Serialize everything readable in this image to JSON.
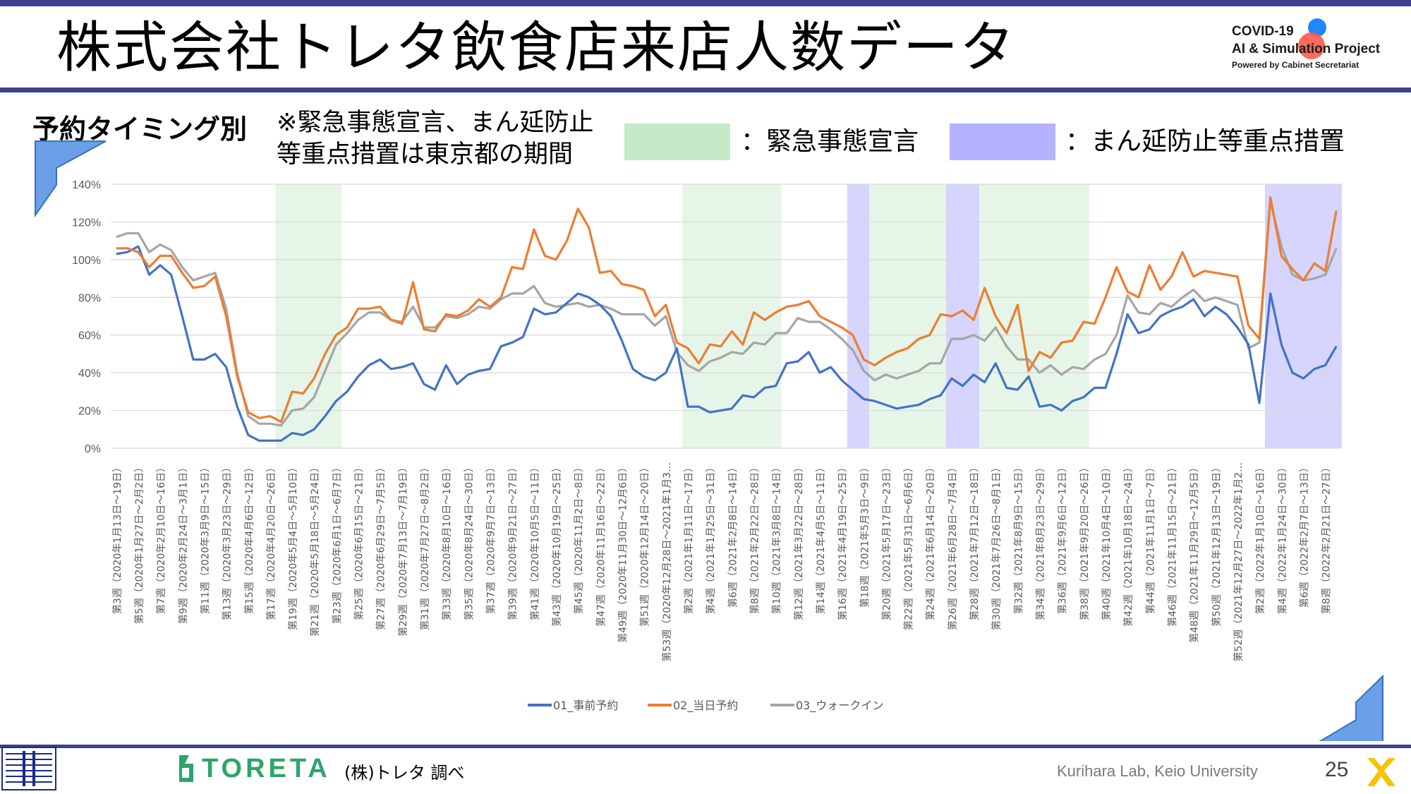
{
  "slide": {
    "title": "株式会社トレタ飲食店来店人数データ",
    "subtitle": "予約タイミング別",
    "note_line1": "※緊急事態宣言、まん延防止",
    "note_line2": "等重点措置は東京都の期間",
    "legend_emergency": "：緊急事態宣言",
    "legend_manen": "：まん延防止等重点措置",
    "covid_logo_line1": "COVID-19",
    "covid_logo_line2": "AI & Simulation Project",
    "covid_logo_line3": "Powered by Cabinet Secretariat",
    "toreta_logo": "TORETA",
    "source": "(株)トレタ 調べ",
    "lab": "Kurihara Lab, Keio University",
    "page_number": "25",
    "colors": {
      "accent_bar": "#3f3f8f",
      "emergency": "#c6e9c9",
      "manen": "#b3b3ff",
      "series1": "#4472c4",
      "series2": "#ed7d31",
      "series3": "#a5a5a5"
    }
  },
  "chart_data": {
    "type": "line",
    "x_count": 112,
    "ylim": [
      0,
      140
    ],
    "yticks": [
      "0%",
      "20%",
      "40%",
      "60%",
      "80%",
      "100%",
      "120%",
      "140%"
    ],
    "grid": true,
    "legend_position": "bottom",
    "xtick_labels": [
      "第3週（2020年1月13日～19日）",
      "第5週（2020年1月27日～2月2日）",
      "第7週（2020年2月10日～16日）",
      "第9週（2020年2月24日～3月1日）",
      "第11週（2020年3月9日～15日）",
      "第13週（2020年3月23日～29日）",
      "第15週（2020年4月6日～12日）",
      "第17週（2020年4月20日～26日）",
      "第19週（2020年5月4日～5月10日）",
      "第21週（2020年5月18日～5月24日）",
      "第23週（2020年6月1日～6月7日）",
      "第25週（2020年6月15日～21日）",
      "第27週（2020年6月29日～7月5日）",
      "第29週（2020年7月13日～7月19日）",
      "第31週（2020年7月27日～8月2日）",
      "第33週（2020年8月10日～16日）",
      "第35週（2020年8月24日～30日）",
      "第37週（2020年9月7日～13日）",
      "第39週（2020年9月21日～27日）",
      "第41週（2020年10月5日～11日）",
      "第43週（2020年10月19日～25日）",
      "第45週（2020年11月2日～8日）",
      "第47週（2020年11月16日～22日）",
      "第49週（2020年11月30日～12月6日）",
      "第51週（2020年12月14日～20日）",
      "第53週（2020年12月28日～2021年1月3…",
      "第2週（2021年1月11日～17日）",
      "第4週（2021年1月25日～31日）",
      "第6週（2021年2月8日～14日）",
      "第8週（2021年2月22日～28日）",
      "第10週（2021年3月8日～14日）",
      "第12週（2021年3月22日～28日）",
      "第14週（2021年4月5日～11日）",
      "第16週（2021年4月19日～25日）",
      "第18週（2021年5月3日～9日）",
      "第20週（2021年5月17日～23日）",
      "第22週（2021年5月31日～6月6日）",
      "第24週（2021年6月14日～20日）",
      "第26週（2021年6月28日～7月4日）",
      "第28週（2021年7月12日～18日）",
      "第30週（2021年7月26日～8月1日）",
      "第32週（2021年8月9日～15日）",
      "第34週（2021年8月23日～29日）",
      "第36週（2021年9月6日～12日）",
      "第38週（2021年9月20日～26日）",
      "第40週（2021年10月4日～10日）",
      "第42週（2021年10月18日～24日）",
      "第44週（2021年11月1日～7日）",
      "第46週（2021年11月15日～21日）",
      "第48週（2021年11月29日～12月5日）",
      "第50週（2021年12月13日～19日）",
      "第52週（2021年12月27日～2022年1月2…",
      "第2週（2022年1月10日～16日）",
      "第4週（2022年1月24日～30日）",
      "第6週（2022年2月7日～13日）",
      "第8週（2022年2月21日～27日）"
    ],
    "series": [
      {
        "name": "01_事前予約",
        "values": [
          103,
          104,
          107,
          92,
          97,
          92,
          70,
          47,
          47,
          50,
          43,
          22,
          7,
          4,
          4,
          4,
          8,
          7,
          10,
          17,
          25,
          30,
          38,
          44,
          47,
          42,
          43,
          45,
          34,
          31,
          44,
          34,
          39,
          41,
          42,
          54,
          56,
          59,
          74,
          71,
          72,
          77,
          82,
          80,
          76,
          70,
          57,
          42,
          38,
          36,
          40,
          53,
          22,
          22,
          19,
          20,
          21,
          28,
          27,
          32,
          33,
          45,
          46,
          51,
          40,
          43,
          36,
          31,
          26,
          25,
          23,
          21,
          22,
          23,
          26,
          28,
          37,
          33,
          39,
          35,
          45,
          32,
          31,
          38,
          22,
          23,
          20,
          25,
          27,
          32,
          32,
          50,
          71,
          61,
          63,
          70,
          73,
          75,
          79,
          70,
          75,
          71,
          64,
          55,
          24,
          82,
          55,
          40,
          37,
          42,
          44,
          54
        ]
      },
      {
        "name": "02_当日予約",
        "values": [
          106,
          106,
          104,
          96,
          102,
          102,
          93,
          85,
          86,
          91,
          70,
          38,
          19,
          16,
          17,
          14,
          30,
          29,
          37,
          50,
          60,
          64,
          74,
          74,
          75,
          68,
          66,
          88,
          63,
          62,
          71,
          70,
          73,
          79,
          75,
          80,
          96,
          95,
          116,
          102,
          100,
          110,
          127,
          117,
          93,
          94,
          87,
          86,
          84,
          70,
          76,
          56,
          53,
          45,
          55,
          54,
          62,
          55,
          72,
          68,
          72,
          75,
          76,
          78,
          70,
          67,
          64,
          60,
          47,
          44,
          48,
          51,
          53,
          58,
          60,
          71,
          70,
          73,
          68,
          85,
          70,
          61,
          76,
          41,
          51,
          48,
          56,
          57,
          67,
          66,
          80,
          96,
          83,
          80,
          97,
          84,
          91,
          104,
          91,
          94,
          93,
          92,
          91,
          65,
          58,
          133,
          102,
          95,
          89,
          98,
          94,
          126
        ]
      },
      {
        "name": "03_ウォークイン",
        "values": [
          112,
          114,
          114,
          104,
          108,
          105,
          96,
          89,
          91,
          93,
          74,
          40,
          17,
          13,
          13,
          12,
          20,
          21,
          27,
          41,
          55,
          61,
          68,
          72,
          72,
          68,
          67,
          75,
          64,
          64,
          70,
          69,
          71,
          75,
          74,
          79,
          82,
          82,
          86,
          77,
          75,
          76,
          77,
          75,
          76,
          74,
          71,
          71,
          71,
          65,
          70,
          51,
          44,
          41,
          46,
          48,
          51,
          50,
          56,
          55,
          61,
          61,
          69,
          67,
          67,
          63,
          58,
          52,
          41,
          36,
          39,
          37,
          39,
          41,
          45,
          45,
          58,
          58,
          60,
          57,
          64,
          54,
          47,
          47,
          40,
          44,
          39,
          43,
          42,
          47,
          50,
          60,
          81,
          72,
          71,
          77,
          75,
          80,
          84,
          78,
          80,
          78,
          76,
          53,
          56,
          131,
          107,
          92,
          89,
          90,
          92,
          106
        ]
      }
    ],
    "shaded_periods": [
      {
        "kind": "emergency",
        "start": 14.5,
        "end": 20.5
      },
      {
        "kind": "emergency",
        "start": 51.5,
        "end": 60.5
      },
      {
        "kind": "manen",
        "start": 66.5,
        "end": 68.5
      },
      {
        "kind": "emergency",
        "start": 68.5,
        "end": 75.5
      },
      {
        "kind": "manen",
        "start": 75.5,
        "end": 78.5
      },
      {
        "kind": "emergency",
        "start": 78.5,
        "end": 88.5
      },
      {
        "kind": "manen",
        "start": 104.5,
        "end": 111.5
      }
    ]
  }
}
